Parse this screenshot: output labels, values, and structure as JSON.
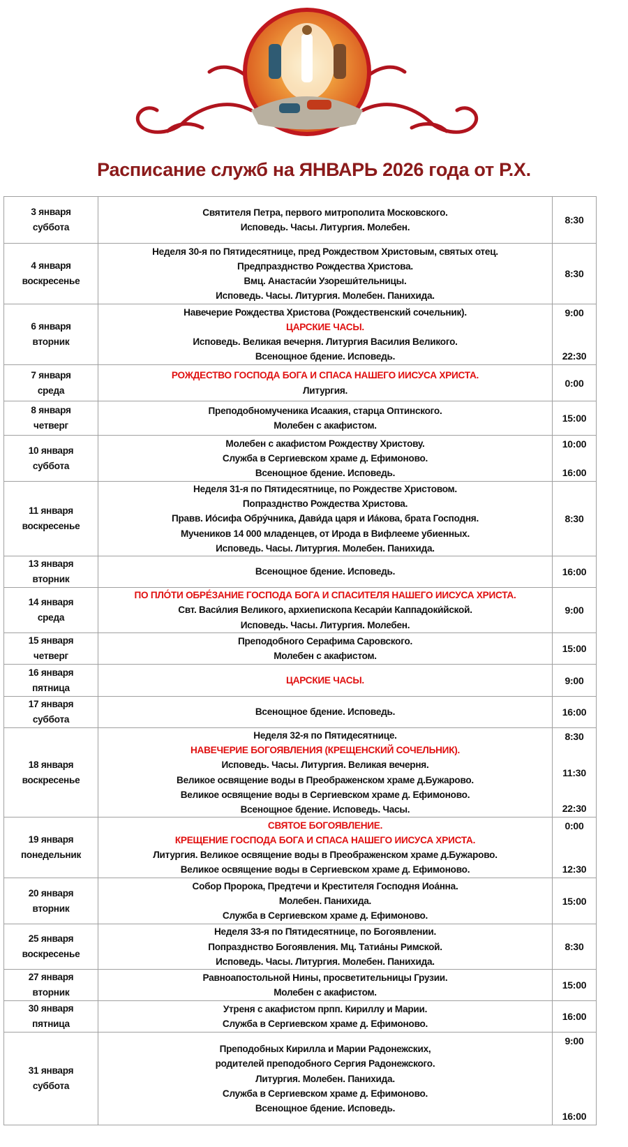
{
  "title": "Расписание служб на ЯНВАРЬ 2026 года от Р.Х.",
  "colors": {
    "title": "#8b1a1a",
    "highlight": "#e01010",
    "border": "#a0a0a0"
  },
  "rows": [
    {
      "date": "3 января",
      "day": "суббота",
      "lines": [
        {
          "text": "Святителя Петра, первого митрополита Московского."
        },
        {
          "text": "Исповедь. Часы. Литургия. Молебен."
        }
      ],
      "times": [
        "8:30"
      ]
    },
    {
      "date": "4 января",
      "day": "воскресенье",
      "lines": [
        {
          "text": "Неделя 30-я по Пятидесятнице, пред Рождеством Христовым, святых отец."
        },
        {
          "text": "Предпразднство Рождества Христова."
        },
        {
          "text": "Вмц. Анастаси́и Узореши́тельницы."
        },
        {
          "text": "Исповедь. Часы. Литургия. Молебен. Панихида."
        }
      ],
      "times": [
        "8:30"
      ]
    },
    {
      "date": "6 января",
      "day": "вторник",
      "lines": [
        {
          "text": "Навечерие Рождества Христова (Рождественский сочельник)."
        },
        {
          "text": "ЦАРСКИЕ ЧАСЫ.",
          "red": true
        },
        {
          "text": "Исповедь. Великая вечерня. Литургия Василия Великого."
        },
        {
          "text": "Всенощное бдение. Исповедь."
        }
      ],
      "times": [
        "9:00",
        "22:30"
      ]
    },
    {
      "date": "7 января",
      "day": "среда",
      "lines": [
        {
          "text": "РОЖДЕСТВО ГОСПОДА БОГА И СПАСА НАШЕГО ИИСУСА ХРИСТА.",
          "red": true
        },
        {
          "text": "Литургия."
        }
      ],
      "times": [
        "0:00"
      ]
    },
    {
      "date": "8 января",
      "day": "четверг",
      "lines": [
        {
          "text": "Преподобномученика Исаакия, старца Оптинского."
        },
        {
          "text": "Молебен с акафистом."
        }
      ],
      "times": [
        "15:00"
      ]
    },
    {
      "date": "10 января",
      "day": "суббота",
      "lines": [
        {
          "text": "Молебен с акафистом Рождеству Христову."
        },
        {
          "text": "Служба в Сергиевском храме д. Ефимоново."
        },
        {
          "text": "Всенощное бдение. Исповедь."
        }
      ],
      "times": [
        "10:00",
        "16:00"
      ]
    },
    {
      "date": "11 января",
      "day": "воскресенье",
      "lines": [
        {
          "text": "Неделя 31-я по Пятидесятнице, по Рождестве Христовом."
        },
        {
          "text": "Попразднство Рождества Христова."
        },
        {
          "text": "Правв. Ио́сифа Обру́чника, Дави́да царя и Иа́кова, брата Господня."
        },
        {
          "text": "Мучеников 14 000 младенцев, от Ирода в Вифлееме убиенных."
        },
        {
          "text": "Исповедь. Часы. Литургия. Молебен. Панихида."
        }
      ],
      "times": [
        "8:30"
      ]
    },
    {
      "date": "13 января",
      "day": "вторник",
      "lines": [
        {
          "text": "Всенощное бдение. Исповедь."
        }
      ],
      "times": [
        "16:00"
      ]
    },
    {
      "date": "14 января",
      "day": "среда",
      "lines": [
        {
          "text": "ПО ПЛО́ТИ ОБРЕ́ЗАНИЕ ГОСПОДА БОГА И СПАСИТЕЛЯ НАШЕГО ИИСУСА ХРИСТА.",
          "red": true
        },
        {
          "text": "Свт. Васи́лия Великого, архиепископа Кесари́и Каппадоки́йской."
        },
        {
          "text": "Исповедь. Часы. Литургия. Молебен."
        }
      ],
      "times": [
        "9:00"
      ]
    },
    {
      "date": "15 января",
      "day": "четверг",
      "lines": [
        {
          "text": "Преподобного Серафима Саровского."
        },
        {
          "text": "Молебен с акафистом."
        }
      ],
      "times": [
        "15:00"
      ]
    },
    {
      "date": "16 января",
      "day": "пятница",
      "lines": [
        {
          "text": "ЦАРСКИЕ ЧАСЫ.",
          "red": true
        }
      ],
      "times": [
        "9:00"
      ]
    },
    {
      "date": "17 января",
      "day": "суббота",
      "lines": [
        {
          "text": "Всенощное бдение. Исповедь."
        }
      ],
      "times": [
        "16:00"
      ]
    },
    {
      "date": "18 января",
      "day": "воскресенье",
      "lines": [
        {
          "text": "Неделя 32-я по Пятидесятнице."
        },
        {
          "text": "НАВЕЧЕРИЕ БОГОЯВЛЕНИЯ (КРЕЩЕНСКИЙ СОЧЕЛЬНИК).",
          "red": true
        },
        {
          "text": "Исповедь. Часы. Литургия. Великая вечерня."
        },
        {
          "text": "Великое освящение воды в Преображенском храме д.Бужарово."
        },
        {
          "text": "Великое освящение воды в Сергиевском храме д. Ефимоново."
        },
        {
          "text": "Всенощное бдение. Исповедь. Часы."
        }
      ],
      "times": [
        "8:30",
        "11:30",
        "22:30"
      ]
    },
    {
      "date": "19 января",
      "day": "понедельник",
      "lines": [
        {
          "text": "СВЯТОЕ БОГОЯВЛЕНИЕ.",
          "red": true
        },
        {
          "text": "КРЕЩЕНИЕ ГОСПОДА БОГА И СПАСА НАШЕГО ИИСУСА ХРИСТА.",
          "red": true
        },
        {
          "text": "Литургия. Великое освящение воды в Преображенском храме д.Бужарово."
        },
        {
          "text": "Великое освящение воды в Сергиевском храме д. Ефимоново."
        }
      ],
      "times": [
        "0:00",
        "12:30"
      ]
    },
    {
      "date": "20 января",
      "day": "вторник",
      "lines": [
        {
          "text": "Собор Пророка, Предтечи и Крестителя Господня Иоа́нна."
        },
        {
          "text": "Молебен. Панихида."
        },
        {
          "text": "Служба в Сергиевском храме д. Ефимоново."
        }
      ],
      "times": [
        "15:00"
      ]
    },
    {
      "date": "25 января",
      "day": "воскресенье",
      "lines": [
        {
          "text": "Неделя 33-я по Пятидесятнице, по Богоявлении."
        },
        {
          "text": "Попразднство Богоявления. Мц. Татиа́ны Римской."
        },
        {
          "text": "Исповедь. Часы. Литургия. Молебен. Панихида."
        }
      ],
      "times": [
        "8:30"
      ]
    },
    {
      "date": "27 января",
      "day": "вторник",
      "lines": [
        {
          "text": "Равноапостольной Нины, просветительницы Грузии."
        },
        {
          "text": "Молебен с акафистом."
        }
      ],
      "times": [
        "15:00"
      ]
    },
    {
      "date": "30 января",
      "day": "пятница",
      "lines": [
        {
          "text": "Утреня с акафистом прпп. Кириллу и Марии."
        },
        {
          "text": "Служба в Сергиевском храме д. Ефимоново."
        }
      ],
      "times": [
        "16:00"
      ]
    },
    {
      "date": "31 января",
      "day": "суббота",
      "lines": [
        {
          "text": "Преподобных Кирилла и Марии Радонежских,"
        },
        {
          "text": "родителей преподобного Сергия Радонежского."
        },
        {
          "text": "Литургия. Молебен. Панихида."
        },
        {
          "text": "Служба в Сергиевском храме д. Ефимоново."
        },
        {
          "text": "Всенощное бдение. Исповедь."
        }
      ],
      "times": [
        "9:00",
        "16:00"
      ]
    }
  ]
}
